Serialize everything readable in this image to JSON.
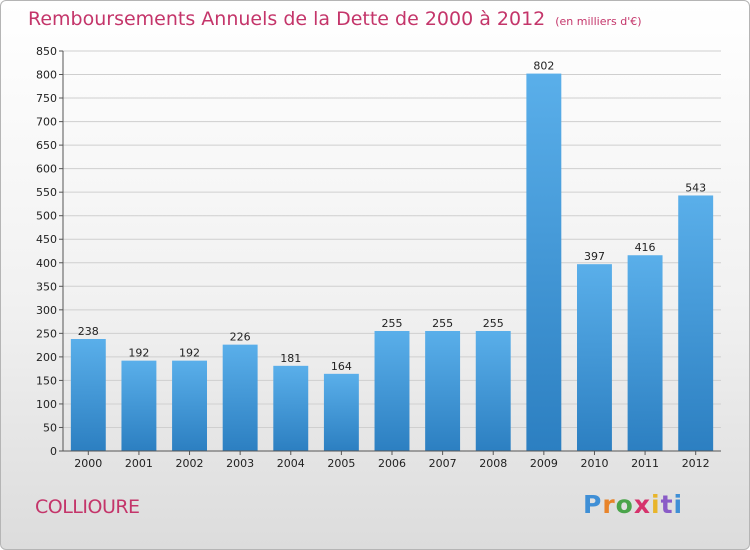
{
  "header": {
    "title": "Remboursements Annuels de la Dette de 2000 à 2012",
    "unit": "(en milliers d'€)"
  },
  "footer": {
    "city": "COLLIOURE",
    "logo_letters": [
      "P",
      "r",
      "o",
      "x",
      "i",
      "t",
      "i"
    ],
    "logo_colors": [
      "#3f8fd6",
      "#e8842a",
      "#4aa44a",
      "#d6336c",
      "#e8b52a",
      "#8a5cc7",
      "#3f8fd6"
    ]
  },
  "chart_data": {
    "type": "bar",
    "title": "Remboursements Annuels de la Dette de 2000 à 2012",
    "categories": [
      "2000",
      "2001",
      "2002",
      "2003",
      "2004",
      "2005",
      "2006",
      "2007",
      "2008",
      "2009",
      "2010",
      "2011",
      "2012"
    ],
    "values": [
      238,
      192,
      192,
      226,
      181,
      164,
      255,
      255,
      255,
      802,
      397,
      416,
      543
    ],
    "ylim": [
      0,
      850
    ],
    "yticks": [
      0,
      50,
      100,
      150,
      200,
      250,
      300,
      350,
      400,
      450,
      500,
      550,
      600,
      650,
      700,
      750,
      800,
      850
    ],
    "grid": true,
    "bar_color_top": "#5aafea",
    "bar_color_bottom": "#2c7fc1"
  }
}
